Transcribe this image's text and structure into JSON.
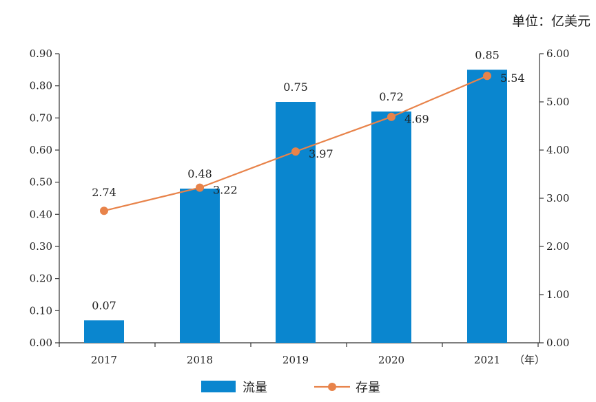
{
  "unit": "单位：亿美元",
  "chart_data": {
    "type": "bar+line",
    "categories": [
      "2017",
      "2018",
      "2019",
      "2020",
      "2021"
    ],
    "x_suffix": "（年）",
    "series": [
      {
        "name": "流量",
        "type": "bar",
        "axis": "left",
        "values": [
          0.07,
          0.48,
          0.75,
          0.72,
          0.85
        ],
        "labels": [
          "0.07",
          "0.48",
          "0.75",
          "0.72",
          "0.85"
        ],
        "color": "#0a86cf"
      },
      {
        "name": "存量",
        "type": "line",
        "axis": "right",
        "values": [
          2.74,
          3.22,
          3.97,
          4.69,
          5.54
        ],
        "labels": [
          "2.74",
          "3.22",
          "3.97",
          "4.69",
          "5.54"
        ],
        "color": "#e8834a"
      }
    ],
    "left_axis": {
      "min": 0,
      "max": 0.9,
      "ticks": [
        "0.00",
        "0.10",
        "0.20",
        "0.30",
        "0.40",
        "0.50",
        "0.60",
        "0.70",
        "0.80",
        "0.90"
      ]
    },
    "right_axis": {
      "min": 0,
      "max": 6,
      "ticks": [
        "0.00",
        "1.00",
        "2.00",
        "3.00",
        "4.00",
        "5.00",
        "6.00"
      ]
    },
    "legend": {
      "position": "bottom-center"
    }
  }
}
